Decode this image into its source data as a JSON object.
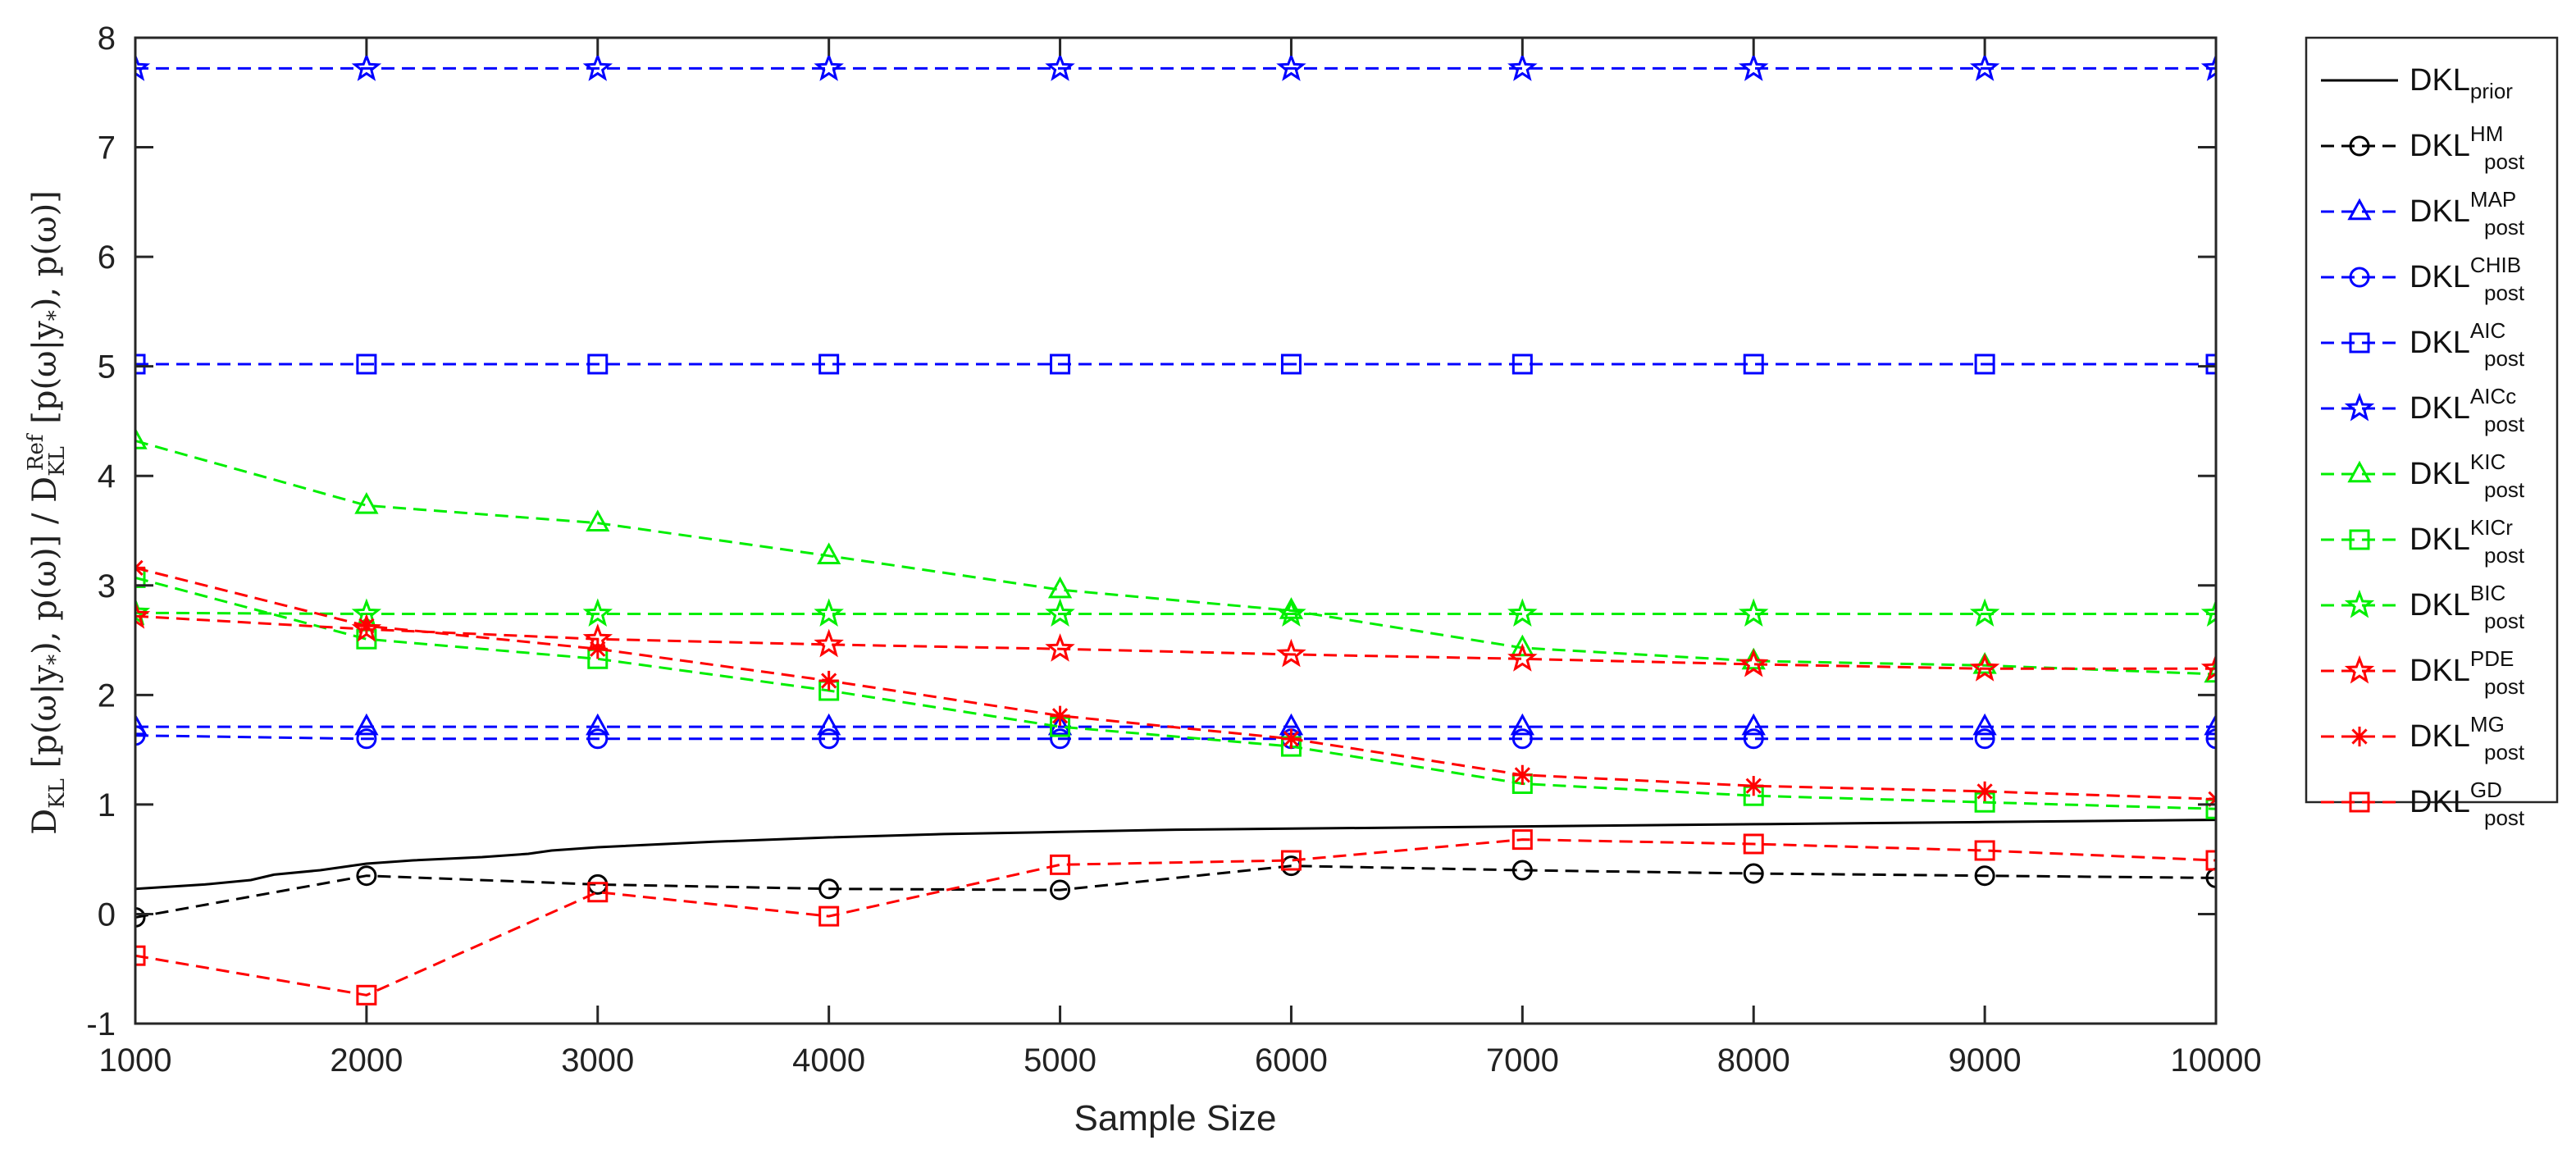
{
  "chart_data": {
    "type": "line",
    "title": "",
    "xlabel": "Sample Size",
    "ylabel": "D_KL[p(ω|y*),p(ω)] / D_KL^Ref[p(ω|y*),p(ω)]",
    "ylabel_parts": {
      "d1": "D",
      "d1_sub": "KL",
      "arg1": " [p(ω|y",
      "star1": "*",
      "arg1_end": "), p(ω)] / ",
      "d2": "D",
      "d2_sub": "KL",
      "d2_sup": "Ref",
      "arg2": " [p(ω|y",
      "star2": "*",
      "arg2_end": "), p(ω)]"
    },
    "xlim": [
      1000,
      10000
    ],
    "ylim": [
      -1,
      8
    ],
    "xticks": [
      1000,
      2000,
      3000,
      4000,
      5000,
      6000,
      7000,
      8000,
      9000,
      10000
    ],
    "xtick_labels": [
      "1000",
      "2000",
      "3000",
      "4000",
      "5000",
      "6000",
      "7000",
      "8000",
      "9000",
      "10000"
    ],
    "yticks": [
      -1,
      0,
      1,
      2,
      3,
      4,
      5,
      6,
      7,
      8
    ],
    "ytick_labels": [
      "-1",
      "0",
      "1",
      "2",
      "3",
      "4",
      "5",
      "6",
      "7",
      "8"
    ],
    "grid": false,
    "legend_position": "outside-right",
    "x": [
      1000,
      2000,
      3000,
      4000,
      5000,
      6000,
      7000,
      8000,
      9000,
      10000
    ],
    "series": [
      {
        "name": "DKL",
        "sub": "prior",
        "sup": "",
        "color": "#000000",
        "dash": "solid",
        "marker": "none",
        "x": [
          1000,
          1300,
          1500,
          1600,
          1800,
          2000,
          2200,
          2500,
          2700,
          2800,
          3000,
          3500,
          4000,
          4500,
          5000,
          5500,
          6000,
          7000,
          8000,
          9000,
          10000
        ],
        "values": [
          0.23,
          0.27,
          0.31,
          0.36,
          0.4,
          0.46,
          0.49,
          0.52,
          0.55,
          0.58,
          0.61,
          0.66,
          0.7,
          0.73,
          0.75,
          0.77,
          0.78,
          0.8,
          0.82,
          0.84,
          0.86
        ]
      },
      {
        "name": "DKL",
        "sub": "post",
        "sup": "HM",
        "color": "#000000",
        "dash": "dashed",
        "marker": "circle",
        "values": [
          -0.03,
          0.35,
          0.27,
          0.23,
          0.22,
          0.44,
          0.4,
          0.37,
          0.35,
          0.33
        ]
      },
      {
        "name": "DKL",
        "sub": "post",
        "sup": "MAP",
        "color": "#0000ff",
        "dash": "dashed",
        "marker": "triangle",
        "values": [
          1.71,
          1.71,
          1.71,
          1.71,
          1.71,
          1.71,
          1.71,
          1.71,
          1.71,
          1.71
        ]
      },
      {
        "name": "DKL",
        "sub": "post",
        "sup": "CHIB",
        "color": "#0000ff",
        "dash": "dashed",
        "marker": "circle",
        "values": [
          1.63,
          1.6,
          1.6,
          1.6,
          1.6,
          1.6,
          1.6,
          1.6,
          1.6,
          1.6
        ]
      },
      {
        "name": "DKL",
        "sub": "post",
        "sup": "AIC",
        "color": "#0000ff",
        "dash": "dashed",
        "marker": "square",
        "values": [
          5.02,
          5.02,
          5.02,
          5.02,
          5.02,
          5.02,
          5.02,
          5.02,
          5.02,
          5.02
        ]
      },
      {
        "name": "DKL",
        "sub": "post",
        "sup": "AICc",
        "color": "#0000ff",
        "dash": "dashed",
        "marker": "star5",
        "values": [
          7.72,
          7.72,
          7.72,
          7.72,
          7.72,
          7.72,
          7.72,
          7.72,
          7.72,
          7.72
        ]
      },
      {
        "name": "DKL",
        "sub": "post",
        "sup": "KIC",
        "color": "#00ee00",
        "dash": "dashed",
        "marker": "triangle",
        "values": [
          4.32,
          3.73,
          3.57,
          3.27,
          2.96,
          2.77,
          2.43,
          2.31,
          2.27,
          2.19
        ]
      },
      {
        "name": "DKL",
        "sub": "post",
        "sup": "KICr",
        "color": "#00ee00",
        "dash": "dashed",
        "marker": "square",
        "values": [
          3.07,
          2.51,
          2.33,
          2.04,
          1.71,
          1.53,
          1.19,
          1.08,
          1.02,
          0.96
        ]
      },
      {
        "name": "DKL",
        "sub": "post",
        "sup": "BIC",
        "color": "#00ee00",
        "dash": "dashed",
        "marker": "star5",
        "values": [
          2.75,
          2.74,
          2.74,
          2.74,
          2.74,
          2.74,
          2.74,
          2.74,
          2.74,
          2.74
        ]
      },
      {
        "name": "DKL",
        "sub": "post",
        "sup": "PDE",
        "color": "#ff0000",
        "dash": "dashed",
        "marker": "star5",
        "values": [
          2.72,
          2.6,
          2.51,
          2.46,
          2.42,
          2.37,
          2.33,
          2.28,
          2.24,
          2.24
        ]
      },
      {
        "name": "DKL",
        "sub": "post",
        "sup": "MG",
        "color": "#ff0000",
        "dash": "dashed",
        "marker": "asterisk",
        "values": [
          3.16,
          2.63,
          2.42,
          2.13,
          1.81,
          1.6,
          1.27,
          1.17,
          1.12,
          1.05
        ]
      },
      {
        "name": "DKL",
        "sub": "post",
        "sup": "GD",
        "color": "#ff0000",
        "dash": "dashed",
        "marker": "square",
        "values": [
          -0.38,
          -0.74,
          0.2,
          -0.02,
          0.45,
          0.49,
          0.68,
          0.64,
          0.58,
          0.49
        ]
      }
    ]
  }
}
